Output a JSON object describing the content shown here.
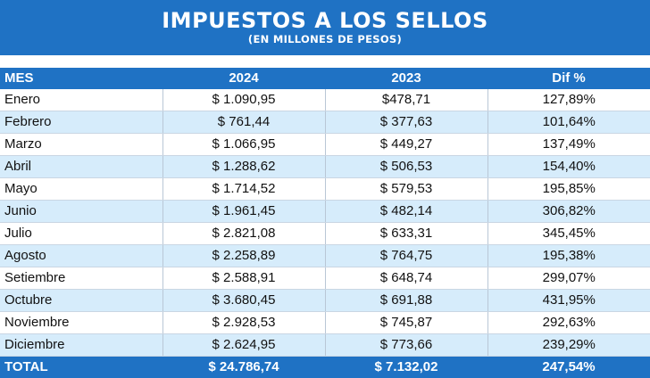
{
  "chart_data": {
    "type": "table",
    "title": "IMPUESTOS A LOS SELLOS",
    "subtitle": "(EN MILLONES DE PESOS)",
    "columns": [
      "MES",
      "2024",
      "2023",
      "Dif %"
    ],
    "rows": [
      [
        "Enero",
        "$ 1.090,95",
        "$478,71",
        "127,89%"
      ],
      [
        "Febrero",
        "$ 761,44",
        "$ 377,63",
        "101,64%"
      ],
      [
        "Marzo",
        "$ 1.066,95",
        "$ 449,27",
        "137,49%"
      ],
      [
        "Abril",
        "$ 1.288,62",
        "$ 506,53",
        "154,40%"
      ],
      [
        "Mayo",
        "$ 1.714,52",
        "$ 579,53",
        "195,85%"
      ],
      [
        "Junio",
        "$ 1.961,45",
        "$ 482,14",
        "306,82%"
      ],
      [
        "Julio",
        "$ 2.821,08",
        "$ 633,31",
        "345,45%"
      ],
      [
        "Agosto",
        "$ 2.258,89",
        "$ 764,75",
        "195,38%"
      ],
      [
        "Setiembre",
        "$ 2.588,91",
        "$ 648,74",
        "299,07%"
      ],
      [
        "Octubre",
        "$ 3.680,45",
        "$ 691,88",
        "431,95%"
      ],
      [
        "Noviembre",
        "$ 2.928,53",
        "$ 745,87",
        "292,63%"
      ],
      [
        "Diciembre",
        "$ 2.624,95",
        "$ 773,66",
        "239,29%"
      ]
    ],
    "total": [
      "TOTAL",
      "$ 24.786,74",
      "$ 7.132,02",
      "247,54%"
    ]
  },
  "colors": {
    "header": "#1f72c4",
    "stripe": "#d6ecfb"
  }
}
